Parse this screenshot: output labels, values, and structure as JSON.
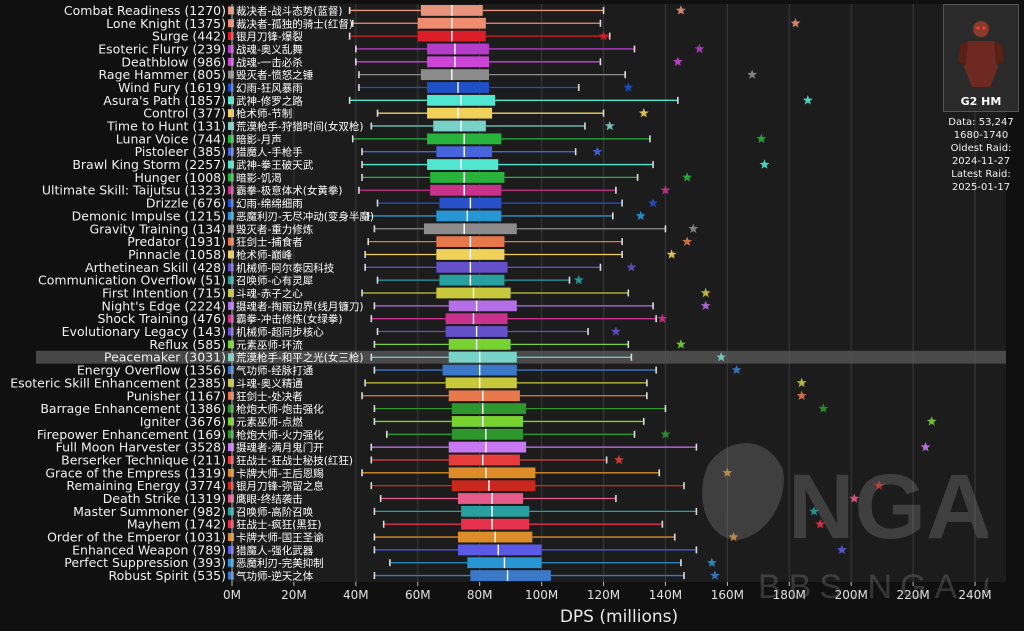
{
  "chart_data": {
    "type": "box",
    "xlabel": "DPS (millions)",
    "xlim": [
      0,
      250
    ],
    "xticks": [
      0,
      20,
      40,
      60,
      80,
      100,
      120,
      140,
      160,
      180,
      200,
      220,
      240
    ],
    "xtick_labels": [
      "0M",
      "20M",
      "40M",
      "60M",
      "80M",
      "100M",
      "120M",
      "140M",
      "160M",
      "180M",
      "200M",
      "220M",
      "240M"
    ],
    "highlighted_row": 27,
    "rows": [
      {
        "label": "Combat Readiness (1270)",
        "cn": "裁决者-战斗态势(蓝督)",
        "color": "#e8947c",
        "min": 38,
        "q1": 61,
        "median": 71,
        "q3": 81,
        "max": 120,
        "star": 145
      },
      {
        "label": "Lone Knight (1375)",
        "cn": "裁决者-孤独的骑士(红督)",
        "color": "#f08c70",
        "min": 39,
        "q1": 60,
        "median": 71,
        "q3": 82,
        "max": 119,
        "star": 182
      },
      {
        "label": "Surge (442)",
        "cn": "银月刀锋-爆裂",
        "color": "#dc1e28",
        "min": 38,
        "q1": 60,
        "median": 71,
        "q3": 82,
        "max": 122,
        "star": 120
      },
      {
        "label": "Esoteric Flurry (239)",
        "cn": "战魂-奥义乱舞",
        "color": "#b43cc8",
        "min": 40,
        "q1": 63,
        "median": 72,
        "q3": 83,
        "max": 130,
        "star": 151
      },
      {
        "label": "Deathblow (986)",
        "cn": "战魂-一击必杀",
        "color": "#cc44d8",
        "min": 40,
        "q1": 63,
        "median": 72,
        "q3": 83,
        "max": 119,
        "star": 144
      },
      {
        "label": "Rage Hammer (805)",
        "cn": "毁灭者-愤怒之锤",
        "color": "#8c8c8c",
        "min": 41,
        "q1": 61,
        "median": 71,
        "q3": 83,
        "max": 127,
        "star": 168
      },
      {
        "label": "Wind Fury (1619)",
        "cn": "幻雨-狂风暴雨",
        "color": "#1e50c8",
        "min": 41,
        "q1": 63,
        "median": 73,
        "q3": 83,
        "max": 112,
        "star": 128
      },
      {
        "label": "Asura's Path (1857)",
        "cn": "武神-修罗之路",
        "color": "#50e6d0",
        "min": 38,
        "q1": 63,
        "median": 74,
        "q3": 85,
        "max": 144,
        "star": 186
      },
      {
        "label": "Control (377)",
        "cn": "枪术师-节制",
        "color": "#f0d25a",
        "min": 47,
        "q1": 63,
        "median": 73,
        "q3": 84,
        "max": 120,
        "star": 133
      },
      {
        "label": "Time to Hunt (131)",
        "cn": "荒漠枪手-狩猎时间(女双枪)",
        "color": "#78d2c8",
        "min": 45,
        "q1": 65,
        "median": 74,
        "q3": 82,
        "max": 114,
        "star": 122
      },
      {
        "label": "Lunar Voice (744)",
        "cn": "暗影-月声",
        "color": "#28b43c",
        "min": 39,
        "q1": 63,
        "median": 75,
        "q3": 87,
        "max": 135,
        "star": 171
      },
      {
        "label": "Pistoleer (385)",
        "cn": "猎魔人-手枪手",
        "color": "#4664dc",
        "min": 42,
        "q1": 66,
        "median": 75,
        "q3": 84,
        "max": 111,
        "star": 118
      },
      {
        "label": "Brawl King Storm (2257)",
        "cn": "武神-拳王破天武",
        "color": "#50e6d0",
        "min": 42,
        "q1": 63,
        "median": 74,
        "q3": 86,
        "max": 136,
        "star": 172
      },
      {
        "label": "Hunger (1008)",
        "cn": "暗影-饥渴",
        "color": "#28b43c",
        "min": 42,
        "q1": 64,
        "median": 75,
        "q3": 88,
        "max": 131,
        "star": 147
      },
      {
        "label": "Ultimate Skill: Taijutsu (1323)",
        "cn": "霸拳-极意体术(女黄拳)",
        "color": "#c8328c",
        "min": 41,
        "q1": 64,
        "median": 75,
        "q3": 87,
        "max": 124,
        "star": 140
      },
      {
        "label": "Drizzle (676)",
        "cn": "幻雨-绵绵细雨",
        "color": "#2850c8",
        "min": 47,
        "q1": 67,
        "median": 77,
        "q3": 87,
        "max": 126,
        "star": 136
      },
      {
        "label": "Demonic Impulse (1215)",
        "cn": "恶魔利刃-无尽冲动(变身半魔)",
        "color": "#2896d2",
        "min": 44,
        "q1": 66,
        "median": 76,
        "q3": 87,
        "max": 123,
        "star": 132
      },
      {
        "label": "Gravity Training (134)",
        "cn": "毁灭者-重力修炼",
        "color": "#8c8c8c",
        "min": 46,
        "q1": 62,
        "median": 75,
        "q3": 92,
        "max": 140,
        "star": 149
      },
      {
        "label": "Predator (1931)",
        "cn": "狂剑士-捕食者",
        "color": "#e6784b",
        "min": 44,
        "q1": 66,
        "median": 77,
        "q3": 88,
        "max": 126,
        "star": 147
      },
      {
        "label": "Pinnacle (1058)",
        "cn": "枪术师-巅峰",
        "color": "#f0d25a",
        "min": 43,
        "q1": 66,
        "median": 77,
        "q3": 88,
        "max": 126,
        "star": 142
      },
      {
        "label": "Arthetinean Skill (428)",
        "cn": "机械师-阿尔泰因科技",
        "color": "#6450c8",
        "min": 43,
        "q1": 66,
        "median": 77,
        "q3": 89,
        "max": 119,
        "star": 129
      },
      {
        "label": "Communication Overflow (51)",
        "cn": "召唤师-心有灵犀",
        "color": "#28a0a0",
        "min": 47,
        "q1": 67,
        "median": 77,
        "q3": 88,
        "max": 109,
        "star": 112
      },
      {
        "label": "First Intention (715)",
        "cn": "斗魂-赤子之心",
        "color": "#c8c83c",
        "min": 42,
        "q1": 66,
        "median": 78,
        "q3": 90,
        "max": 128,
        "star": 153
      },
      {
        "label": "Night's Edge (2224)",
        "cn": "摄魂者-掏丽边界(线月镰刀)",
        "color": "#b46ee6",
        "min": 46,
        "q1": 70,
        "median": 79,
        "q3": 92,
        "max": 136,
        "star": 153
      },
      {
        "label": "Shock Training (476)",
        "cn": "霸拳-冲击修炼(女绿拳)",
        "color": "#c8328c",
        "min": 45,
        "q1": 69,
        "median": 78,
        "q3": 89,
        "max": 137,
        "star": 139
      },
      {
        "label": "Evolutionary Legacy (143)",
        "cn": "机械师-超同步核心",
        "color": "#6450c8",
        "min": 47,
        "q1": 69,
        "median": 79,
        "q3": 89,
        "max": 115,
        "star": 124
      },
      {
        "label": "Reflux (585)",
        "cn": "元素巫师-环流",
        "color": "#78d232",
        "min": 46,
        "q1": 70,
        "median": 79,
        "q3": 90,
        "max": 128,
        "star": 145
      },
      {
        "label": "Peacemaker (3031)",
        "cn": "荒漠枪手-和平之光(女三枪)",
        "color": "#78d2c8",
        "min": 45,
        "q1": 70,
        "median": 80,
        "q3": 92,
        "max": 129,
        "star": 158
      },
      {
        "label": "Energy Overflow (1356)",
        "cn": "气功师-经脉打通",
        "color": "#3c78c8",
        "min": 46,
        "q1": 68,
        "median": 80,
        "q3": 92,
        "max": 137,
        "star": 163
      },
      {
        "label": "Esoteric Skill Enhancement (2385)",
        "cn": "斗魂-奥义精通",
        "color": "#c8c83c",
        "min": 43,
        "q1": 69,
        "median": 80,
        "q3": 92,
        "max": 134,
        "star": 184
      },
      {
        "label": "Punisher (1167)",
        "cn": "狂剑士-处决者",
        "color": "#e6784b",
        "min": 42,
        "q1": 70,
        "median": 81,
        "q3": 93,
        "max": 134,
        "star": 184
      },
      {
        "label": "Barrage Enhancement (1386)",
        "cn": "枪炮大师-炮击强化",
        "color": "#2d962d",
        "min": 46,
        "q1": 71,
        "median": 81,
        "q3": 95,
        "max": 140,
        "star": 191
      },
      {
        "label": "Igniter (3676)",
        "cn": "元素巫师-点燃",
        "color": "#78d232",
        "min": 46,
        "q1": 71,
        "median": 81,
        "q3": 94,
        "max": 133,
        "star": 226
      },
      {
        "label": "Firepower Enhancement (169)",
        "cn": "枪炮大师-火力强化",
        "color": "#2d962d",
        "min": 50,
        "q1": 71,
        "median": 82,
        "q3": 94,
        "max": 130,
        "star": 140
      },
      {
        "label": "Full Moon Harvester (3528)",
        "cn": "摄魂者-满月鬼门开",
        "color": "#c878f0",
        "min": 45,
        "q1": 70,
        "median": 82,
        "q3": 95,
        "max": 150,
        "star": 224
      },
      {
        "label": "Berserker Technique (211)",
        "cn": "狂战士-狂战士秘技(红狂)",
        "color": "#e63c3c",
        "min": 45,
        "q1": 70,
        "median": 81,
        "q3": 93,
        "max": 121,
        "star": 125
      },
      {
        "label": "Grace of the Empress (1319)",
        "cn": "卡牌大师-王后恩赐",
        "color": "#dc8c28",
        "min": 42,
        "q1": 70,
        "median": 82,
        "q3": 98,
        "max": 138,
        "star": 160
      },
      {
        "label": "Remaining Energy (3774)",
        "cn": "银月刀锋-弥留之息",
        "color": "#c8281e",
        "min": 45,
        "q1": 71,
        "median": 83,
        "q3": 98,
        "max": 146,
        "star": 209
      },
      {
        "label": "Death Strike (1319)",
        "cn": "鹰眼-终结袭击",
        "color": "#e65a8c",
        "min": 48,
        "q1": 73,
        "median": 84,
        "q3": 94,
        "max": 124,
        "star": 201
      },
      {
        "label": "Master Summoner (982)",
        "cn": "召唤师-高阶召唤",
        "color": "#28a0a0",
        "min": 46,
        "q1": 74,
        "median": 84,
        "q3": 96,
        "max": 150,
        "star": 188
      },
      {
        "label": "Mayhem (1742)",
        "cn": "狂战士-疯狂(黑狂)",
        "color": "#e6324b",
        "min": 49,
        "q1": 74,
        "median": 84,
        "q3": 96,
        "max": 139,
        "star": 190
      },
      {
        "label": "Order of the Emperor (1031)",
        "cn": "卡牌大师-国王圣谕",
        "color": "#dc8c28",
        "min": 46,
        "q1": 73,
        "median": 85,
        "q3": 97,
        "max": 143,
        "star": 162
      },
      {
        "label": "Enhanced Weapon (789)",
        "cn": "猎魔人-强化武器",
        "color": "#5a5ae6",
        "min": 46,
        "q1": 73,
        "median": 86,
        "q3": 100,
        "max": 150,
        "star": 197
      },
      {
        "label": "Perfect Suppression (393)",
        "cn": "恶魔利刃-完美抑制",
        "color": "#2896d2",
        "min": 51,
        "q1": 76,
        "median": 88,
        "q3": 100,
        "max": 145,
        "star": 155
      },
      {
        "label": "Robust Spirit (535)",
        "cn": "气功师-逆天之体",
        "color": "#3c78c8",
        "min": 46,
        "q1": 77,
        "median": 89,
        "q3": 103,
        "max": 146,
        "star": 156
      }
    ]
  },
  "panel": {
    "boss_label": "G2 HM",
    "data_line": "Data: 53,247",
    "range_line": "1680-1740",
    "oldest_title": "Oldest Raid:",
    "oldest_date": "2024-11-27",
    "latest_title": "Latest Raid:",
    "latest_date": "2025-01-17"
  },
  "watermark": {
    "logo_text": "NGA",
    "site_text": "BBS.NGA.CN"
  }
}
